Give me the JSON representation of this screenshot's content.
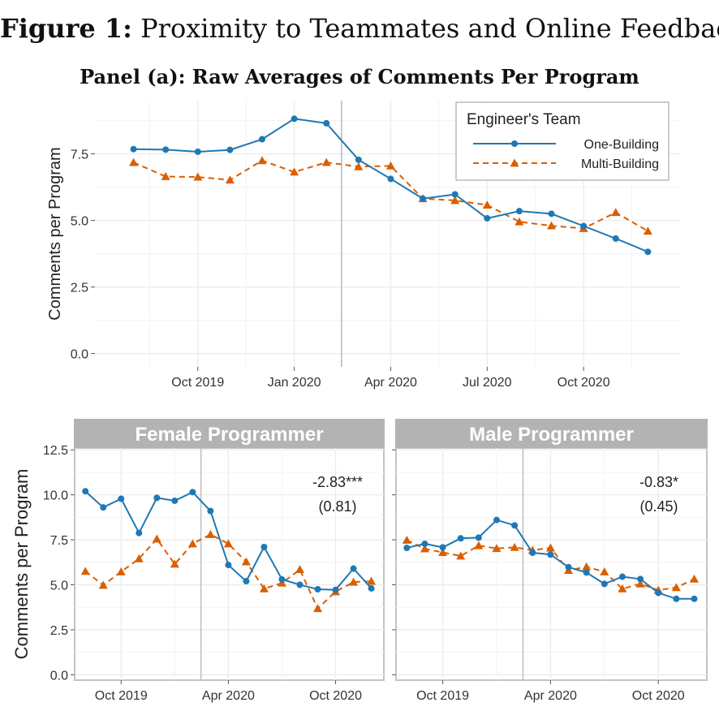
{
  "figure": {
    "title_bold": "Figure 1:",
    "title_rest": "Proximity to Teammates and Online Feedback",
    "panel_title": "Panel (a): Raw Averages of Comments Per Program"
  },
  "colors": {
    "one_building": "#1f78b4",
    "multi_building": "#d95f02",
    "strip_bg": "#b3b3b3",
    "grid": "#ebebeb",
    "frame": "#c4c4c4"
  },
  "chart_data": [
    {
      "type": "line",
      "title": "Panel (a): Raw Averages of Comments Per Program",
      "xlabel": "",
      "ylabel": "Comments per Program",
      "x": [
        "2019-08",
        "2019-09",
        "2019-10",
        "2019-11",
        "2019-12",
        "2020-01",
        "2020-02",
        "2020-03",
        "2020-04",
        "2020-05",
        "2020-06",
        "2020-07",
        "2020-08",
        "2020-09",
        "2020-10",
        "2020-11",
        "2020-12"
      ],
      "x_ticks": [
        "Oct 2019",
        "Jan 2020",
        "Apr 2020",
        "Jul 2020",
        "Oct 2020"
      ],
      "y_ticks": [
        "0.0",
        "2.5",
        "5.0",
        "7.5"
      ],
      "ylim": [
        -0.5,
        9.5
      ],
      "vline": "2020-02-15",
      "legend": {
        "title": "Engineer's Team",
        "position": "top-right"
      },
      "series": [
        {
          "name": "One-Building",
          "marker": "circle",
          "line": "solid",
          "values": [
            7.68,
            7.66,
            7.58,
            7.65,
            8.05,
            8.82,
            8.65,
            7.28,
            6.56,
            5.82,
            5.98,
            5.08,
            5.35,
            5.25,
            4.79,
            4.32,
            3.82
          ]
        },
        {
          "name": "Multi-Building",
          "marker": "triangle",
          "line": "dashed",
          "values": [
            7.18,
            6.65,
            6.63,
            6.52,
            7.25,
            6.82,
            7.18,
            7.02,
            7.05,
            5.82,
            5.75,
            5.58,
            4.95,
            4.8,
            4.7,
            5.3,
            4.6
          ]
        }
      ]
    },
    {
      "type": "line",
      "title": "Female Programmer",
      "ylabel": "Comments per Program",
      "x": [
        "2019-08",
        "2019-09",
        "2019-10",
        "2019-11",
        "2019-12",
        "2020-01",
        "2020-02",
        "2020-03",
        "2020-04",
        "2020-05",
        "2020-06",
        "2020-07",
        "2020-08",
        "2020-09",
        "2020-10",
        "2020-11",
        "2020-12"
      ],
      "x_ticks": [
        "Oct 2019",
        "Apr 2020",
        "Oct 2020"
      ],
      "y_ticks": [
        "0.0",
        "2.5",
        "5.0",
        "7.5",
        "10.0",
        "12.5"
      ],
      "ylim": [
        -0.3,
        12.6
      ],
      "vline": "2020-02-15",
      "annotation": {
        "estimate": "-2.83***",
        "se": "(0.81)"
      },
      "series": [
        {
          "name": "One-Building",
          "values": [
            10.2,
            9.3,
            9.78,
            7.88,
            9.83,
            9.67,
            10.15,
            9.1,
            6.1,
            5.2,
            7.1,
            5.3,
            5.0,
            4.75,
            4.72,
            5.9,
            4.8
          ]
        },
        {
          "name": "Multi-Building",
          "values": [
            5.75,
            4.98,
            5.72,
            6.45,
            7.55,
            6.15,
            7.28,
            7.8,
            7.28,
            6.28,
            4.78,
            5.1,
            5.85,
            3.68,
            4.62,
            5.15,
            5.2
          ]
        }
      ]
    },
    {
      "type": "line",
      "title": "Male Programmer",
      "ylabel": "",
      "x": [
        "2019-08",
        "2019-09",
        "2019-10",
        "2019-11",
        "2019-12",
        "2020-01",
        "2020-02",
        "2020-03",
        "2020-04",
        "2020-05",
        "2020-06",
        "2020-07",
        "2020-08",
        "2020-09",
        "2020-10",
        "2020-11",
        "2020-12"
      ],
      "x_ticks": [
        "Oct 2019",
        "Apr 2020",
        "Oct 2020"
      ],
      "y_ticks": [
        "0.0",
        "2.5",
        "5.0",
        "7.5",
        "10.0",
        "12.5"
      ],
      "ylim": [
        -0.3,
        12.6
      ],
      "vline": "2020-02-15",
      "annotation": {
        "estimate": "-0.83*",
        "se": "(0.45)"
      },
      "series": [
        {
          "name": "One-Building",
          "values": [
            7.05,
            7.28,
            7.08,
            7.58,
            7.62,
            8.6,
            8.3,
            6.78,
            6.68,
            5.98,
            5.68,
            5.05,
            5.45,
            5.32,
            4.55,
            4.22,
            4.22
          ]
        },
        {
          "name": "Multi-Building",
          "values": [
            7.48,
            7.0,
            6.8,
            6.6,
            7.18,
            7.02,
            7.08,
            6.92,
            7.05,
            5.8,
            6.0,
            5.72,
            4.78,
            5.05,
            4.7,
            4.85,
            5.32
          ]
        }
      ]
    }
  ]
}
